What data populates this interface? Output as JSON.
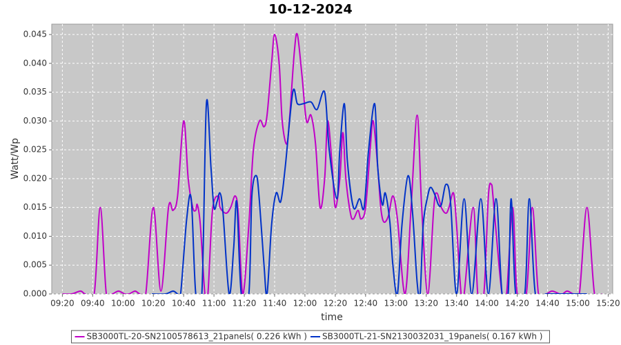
{
  "chart_data": {
    "type": "line",
    "title": "10-12-2024",
    "x_label": "time",
    "y_label": "Watt/Wp",
    "xlim": [
      "09:13",
      "15:23"
    ],
    "xticks": [
      "09:20",
      "09:40",
      "10:00",
      "10:20",
      "10:40",
      "11:00",
      "11:20",
      "11:40",
      "12:00",
      "12:20",
      "12:40",
      "13:00",
      "13:20",
      "13:40",
      "14:00",
      "14:20",
      "14:40",
      "15:00",
      "15:20"
    ],
    "ylim": [
      0,
      0.0468
    ],
    "yticks": [
      {
        "value": 0,
        "label": "0.000"
      },
      0.005,
      {
        "value": 0.01,
        "label": "0.010"
      },
      0.015,
      {
        "value": 0.02,
        "label": "0.020"
      },
      0.025,
      {
        "value": 0.03,
        "label": "0.030"
      },
      0.035,
      {
        "value": 0.04,
        "label": "0.040"
      },
      0.045
    ],
    "grid": true,
    "legend": "bottom",
    "series": [
      {
        "name": "SB3000TL-20-SN2100578613_21panels( 0.226 kWh )",
        "color": "#c000c8",
        "x": [
          "09:20",
          "09:26",
          "09:32",
          "09:35",
          "09:41",
          "09:45",
          "09:49",
          "09:53",
          "09:57",
          "10:01",
          "10:04",
          "10:08",
          "10:11",
          "10:15",
          "10:20",
          "10:25",
          "10:30",
          "10:33",
          "10:36",
          "10:40",
          "10:43",
          "10:46",
          "10:48",
          "10:49",
          "10:51",
          "10:54",
          "10:56",
          "10:59",
          "11:03",
          "11:04",
          "11:08",
          "11:11",
          "11:14",
          "11:16",
          "11:19",
          "11:23",
          "11:26",
          "11:30",
          "11:33",
          "11:35",
          "11:38",
          "11:40",
          "11:43",
          "11:45",
          "11:48",
          "11:50",
          "11:53",
          "11:55",
          "11:58",
          "12:01",
          "12:04",
          "12:07",
          "12:10",
          "12:13",
          "12:15",
          "12:18",
          "12:20",
          "12:23",
          "12:25",
          "12:27",
          "12:30",
          "12:32",
          "12:35",
          "12:37",
          "12:40",
          "12:43",
          "12:45",
          "12:48",
          "12:50",
          "12:52",
          "12:55",
          "12:58",
          "13:01",
          "13:06",
          "13:10",
          "13:14",
          "13:17",
          "13:21",
          "13:25",
          "13:27",
          "13:30",
          "13:33",
          "13:35",
          "13:38",
          "13:40",
          "13:43",
          "13:45",
          "13:51",
          "13:54",
          "13:58",
          "14:01",
          "14:03",
          "14:04",
          "14:06",
          "14:10",
          "14:13",
          "14:17",
          "14:20",
          "14:26",
          "14:30",
          "14:34",
          "14:39",
          "14:43",
          "14:48",
          "14:50",
          "14:53",
          "14:57",
          "15:01",
          "15:06",
          "15:11",
          "15:16"
        ],
        "values": [
          0,
          0,
          0.0005,
          0,
          0,
          0.015,
          0,
          0,
          0.0005,
          0,
          0,
          0.0005,
          0,
          0,
          0.015,
          0.0005,
          0.015,
          0.0145,
          0.017,
          0.03,
          0.02,
          0.015,
          0.0145,
          0.0155,
          0.012,
          0,
          0,
          0.0145,
          0.017,
          0.015,
          0.014,
          0.015,
          0.017,
          0.014,
          0,
          0.012,
          0.025,
          0.03,
          0.029,
          0.031,
          0.04,
          0.045,
          0.04,
          0.03,
          0.026,
          0.031,
          0.042,
          0.045,
          0.038,
          0.03,
          0.031,
          0.026,
          0.015,
          0.02,
          0.03,
          0.022,
          0.015,
          0.02,
          0.028,
          0.02,
          0.014,
          0.013,
          0.0145,
          0.013,
          0.015,
          0.025,
          0.03,
          0.022,
          0.015,
          0.0125,
          0.0135,
          0.017,
          0.013,
          0,
          0.015,
          0.031,
          0.015,
          0,
          0.015,
          0.0175,
          0.015,
          0.014,
          0.015,
          0.0175,
          0.012,
          0,
          0,
          0.015,
          0,
          0,
          0.017,
          0.019,
          0.017,
          0.011,
          0,
          0,
          0.015,
          0,
          0,
          0.015,
          0,
          0,
          0.0005,
          0,
          0,
          0.0005,
          0,
          0,
          0.015,
          0,
          0
        ]
      },
      {
        "name": "SB3000TL-21-SN2130032031_19panels( 0.167 kWh )",
        "color": "#0032c8",
        "x": [
          "10:19",
          "10:28",
          "10:33",
          "10:36",
          "10:38",
          "10:42",
          "10:45",
          "10:48",
          "10:52",
          "10:55",
          "10:58",
          "11:00",
          "11:02",
          "11:04",
          "11:06",
          "11:10",
          "11:13",
          "11:15",
          "11:18",
          "11:23",
          "11:25",
          "11:28",
          "11:30",
          "11:33",
          "11:35",
          "11:38",
          "11:41",
          "11:44",
          "11:47",
          "11:52",
          "11:55",
          "11:59",
          "12:04",
          "12:08",
          "12:13",
          "12:16",
          "12:21",
          "12:23",
          "12:26",
          "12:28",
          "12:32",
          "12:36",
          "12:39",
          "12:42",
          "12:46",
          "12:48",
          "12:51",
          "12:53",
          "12:56",
          "12:58",
          "13:01",
          "13:04",
          "13:08",
          "13:11",
          "13:14",
          "13:16",
          "13:18",
          "13:21",
          "13:23",
          "13:26",
          "13:28",
          "13:30",
          "13:33",
          "13:36",
          "13:40",
          "13:45",
          "13:50",
          "13:56",
          "14:01",
          "14:06",
          "14:10",
          "14:14",
          "14:16",
          "14:19",
          "14:25",
          "14:28",
          "14:32",
          "14:39",
          "14:48",
          "14:57",
          "15:06"
        ],
        "values": [
          0,
          0,
          0.0005,
          0,
          0,
          0.013,
          0.0165,
          0,
          0,
          0.033,
          0.022,
          0.015,
          0.016,
          0.0175,
          0.014,
          0,
          0.008,
          0.016,
          0,
          0,
          0.017,
          0.0205,
          0.016,
          0.005,
          0,
          0.012,
          0.0175,
          0.016,
          0.022,
          0.035,
          0.033,
          0.033,
          0.0333,
          0.032,
          0.035,
          0.025,
          0.0165,
          0.025,
          0.033,
          0.023,
          0.015,
          0.0165,
          0.015,
          0.025,
          0.033,
          0.022,
          0.0155,
          0.0175,
          0.0125,
          0.005,
          0,
          0.012,
          0.0205,
          0.014,
          0.002,
          0,
          0.012,
          0.017,
          0.0185,
          0.017,
          0.0155,
          0.0155,
          0.019,
          0.016,
          0,
          0.0165,
          0,
          0.0165,
          0,
          0.0165,
          0,
          0,
          0.0165,
          0,
          0,
          0.0165,
          0,
          0,
          0,
          0,
          0
        ]
      }
    ]
  }
}
